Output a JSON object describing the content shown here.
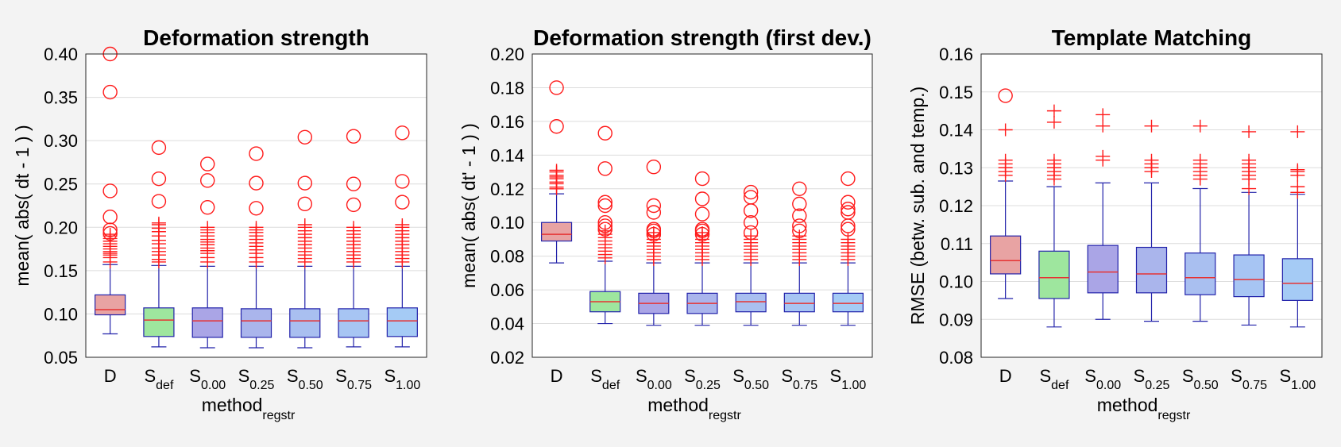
{
  "chart_data": [
    {
      "type": "boxplot",
      "title": "Deformation strength",
      "ylabel": "mean( abs( dt - 1 ) )",
      "xlabel": {
        "main": "method",
        "sub": "regstr"
      },
      "ylim": [
        0.05,
        0.4
      ],
      "yticks": [
        "0.05",
        "0.10",
        "0.15",
        "0.20",
        "0.25",
        "0.30",
        "0.35",
        "0.40"
      ],
      "categories": [
        {
          "main": "D",
          "sub": ""
        },
        {
          "main": "S",
          "sub": "def"
        },
        {
          "main": "S",
          "sub": "0.00"
        },
        {
          "main": "S",
          "sub": "0.25"
        },
        {
          "main": "S",
          "sub": "0.50"
        },
        {
          "main": "S",
          "sub": "0.75"
        },
        {
          "main": "S",
          "sub": "1.00"
        }
      ],
      "boxes": [
        {
          "whisker_low": 0.077,
          "q1": 0.099,
          "median": 0.105,
          "q3": 0.122,
          "whisker_high": 0.157,
          "outliers_plus": [
            0.16,
            0.165,
            0.168,
            0.17,
            0.172,
            0.175,
            0.178,
            0.181,
            0.184,
            0.187,
            0.19,
            0.192
          ],
          "outliers_circle": [
            0.193,
            0.197,
            0.212,
            0.242,
            0.356,
            0.4
          ]
        },
        {
          "whisker_low": 0.062,
          "q1": 0.074,
          "median": 0.093,
          "q3": 0.107,
          "whisker_high": 0.156,
          "outliers_plus": [
            0.16,
            0.163,
            0.168,
            0.172,
            0.176,
            0.181,
            0.185,
            0.19,
            0.195,
            0.199,
            0.203,
            0.205
          ],
          "outliers_circle": [
            0.23,
            0.256,
            0.292
          ]
        },
        {
          "whisker_low": 0.061,
          "q1": 0.073,
          "median": 0.092,
          "q3": 0.107,
          "whisker_high": 0.155,
          "outliers_plus": [
            0.16,
            0.165,
            0.17,
            0.173,
            0.176,
            0.18,
            0.183,
            0.186,
            0.19,
            0.194,
            0.197,
            0.2
          ],
          "outliers_circle": [
            0.223,
            0.254,
            0.273
          ]
        },
        {
          "whisker_low": 0.061,
          "q1": 0.073,
          "median": 0.092,
          "q3": 0.106,
          "whisker_high": 0.155,
          "outliers_plus": [
            0.16,
            0.165,
            0.17,
            0.174,
            0.178,
            0.182,
            0.186,
            0.19,
            0.194,
            0.197,
            0.2
          ],
          "outliers_circle": [
            0.222,
            0.251,
            0.285
          ]
        },
        {
          "whisker_low": 0.061,
          "q1": 0.073,
          "median": 0.092,
          "q3": 0.106,
          "whisker_high": 0.155,
          "outliers_plus": [
            0.16,
            0.164,
            0.168,
            0.172,
            0.176,
            0.18,
            0.184,
            0.188,
            0.192,
            0.196,
            0.2,
            0.203
          ],
          "outliers_circle": [
            0.227,
            0.251,
            0.304
          ]
        },
        {
          "whisker_low": 0.062,
          "q1": 0.073,
          "median": 0.092,
          "q3": 0.106,
          "whisker_high": 0.155,
          "outliers_plus": [
            0.16,
            0.164,
            0.168,
            0.172,
            0.176,
            0.18,
            0.184,
            0.188,
            0.192,
            0.196,
            0.2
          ],
          "outliers_circle": [
            0.226,
            0.25,
            0.305
          ]
        },
        {
          "whisker_low": 0.062,
          "q1": 0.074,
          "median": 0.092,
          "q3": 0.107,
          "whisker_high": 0.155,
          "outliers_plus": [
            0.16,
            0.164,
            0.168,
            0.172,
            0.176,
            0.18,
            0.184,
            0.188,
            0.192,
            0.196,
            0.2,
            0.203
          ],
          "outliers_circle": [
            0.229,
            0.253,
            0.309
          ]
        }
      ]
    },
    {
      "type": "boxplot",
      "title": "Deformation strength (first dev.)",
      "ylabel": "mean( abs( dt' - 1 ) )",
      "xlabel": {
        "main": "method",
        "sub": "regstr"
      },
      "ylim": [
        0.02,
        0.2
      ],
      "yticks": [
        "0.02",
        "0.04",
        "0.06",
        "0.08",
        "0.10",
        "0.12",
        "0.14",
        "0.16",
        "0.18",
        "0.20"
      ],
      "categories": [
        {
          "main": "D",
          "sub": ""
        },
        {
          "main": "S",
          "sub": "def"
        },
        {
          "main": "S",
          "sub": "0.00"
        },
        {
          "main": "S",
          "sub": "0.25"
        },
        {
          "main": "S",
          "sub": "0.50"
        },
        {
          "main": "S",
          "sub": "0.75"
        },
        {
          "main": "S",
          "sub": "1.00"
        }
      ],
      "boxes": [
        {
          "whisker_low": 0.076,
          "q1": 0.089,
          "median": 0.093,
          "q3": 0.1,
          "whisker_high": 0.117,
          "outliers_plus": [
            0.12,
            0.121,
            0.123,
            0.124,
            0.126,
            0.127,
            0.128,
            0.13,
            0.131
          ],
          "outliers_circle": [
            0.157,
            0.18
          ]
        },
        {
          "whisker_low": 0.04,
          "q1": 0.047,
          "median": 0.053,
          "q3": 0.059,
          "whisker_high": 0.077,
          "outliers_plus": [
            0.079,
            0.081,
            0.083,
            0.085,
            0.087,
            0.089,
            0.091,
            0.093,
            0.095
          ],
          "outliers_circle": [
            0.096,
            0.098,
            0.1,
            0.11,
            0.112,
            0.132,
            0.153
          ]
        },
        {
          "whisker_low": 0.039,
          "q1": 0.046,
          "median": 0.052,
          "q3": 0.058,
          "whisker_high": 0.076,
          "outliers_plus": [
            0.078,
            0.08,
            0.082,
            0.084,
            0.086,
            0.088,
            0.09,
            0.092,
            0.094
          ],
          "outliers_circle": [
            0.093,
            0.095,
            0.096,
            0.106,
            0.11,
            0.133
          ]
        },
        {
          "whisker_low": 0.039,
          "q1": 0.046,
          "median": 0.052,
          "q3": 0.058,
          "whisker_high": 0.076,
          "outliers_plus": [
            0.078,
            0.08,
            0.082,
            0.084,
            0.086,
            0.088,
            0.09,
            0.092,
            0.094
          ],
          "outliers_circle": [
            0.093,
            0.095,
            0.096,
            0.105,
            0.114,
            0.126
          ]
        },
        {
          "whisker_low": 0.039,
          "q1": 0.047,
          "median": 0.053,
          "q3": 0.058,
          "whisker_high": 0.076,
          "outliers_plus": [
            0.078,
            0.08,
            0.082,
            0.084,
            0.086,
            0.088,
            0.09,
            0.092
          ],
          "outliers_circle": [
            0.094,
            0.1,
            0.107,
            0.115,
            0.118
          ]
        },
        {
          "whisker_low": 0.039,
          "q1": 0.047,
          "median": 0.052,
          "q3": 0.058,
          "whisker_high": 0.076,
          "outliers_plus": [
            0.078,
            0.08,
            0.082,
            0.084,
            0.086,
            0.088,
            0.09,
            0.092
          ],
          "outliers_circle": [
            0.095,
            0.098,
            0.104,
            0.111,
            0.12
          ]
        },
        {
          "whisker_low": 0.039,
          "q1": 0.047,
          "median": 0.052,
          "q3": 0.058,
          "whisker_high": 0.076,
          "outliers_plus": [
            0.078,
            0.08,
            0.082,
            0.084,
            0.086,
            0.088,
            0.09
          ],
          "outliers_circle": [
            0.096,
            0.098,
            0.106,
            0.108,
            0.112,
            0.126
          ]
        }
      ]
    },
    {
      "type": "boxplot",
      "title": "Template Matching",
      "ylabel": "RMSE (betw. sub. and temp.)",
      "xlabel": {
        "main": "method",
        "sub": "regstr"
      },
      "ylim": [
        0.08,
        0.16
      ],
      "yticks": [
        "0.08",
        "0.09",
        "0.10",
        "0.11",
        "0.12",
        "0.13",
        "0.14",
        "0.15",
        "0.16"
      ],
      "categories": [
        {
          "main": "D",
          "sub": ""
        },
        {
          "main": "S",
          "sub": "def"
        },
        {
          "main": "S",
          "sub": "0.00"
        },
        {
          "main": "S",
          "sub": "0.25"
        },
        {
          "main": "S",
          "sub": "0.50"
        },
        {
          "main": "S",
          "sub": "0.75"
        },
        {
          "main": "S",
          "sub": "1.00"
        }
      ],
      "boxes": [
        {
          "whisker_low": 0.0955,
          "q1": 0.102,
          "median": 0.1055,
          "q3": 0.112,
          "whisker_high": 0.1265,
          "outliers_plus": [
            0.128,
            0.129,
            0.13,
            0.131,
            0.132,
            0.14
          ],
          "outliers_circle": [
            0.149
          ]
        },
        {
          "whisker_low": 0.088,
          "q1": 0.0955,
          "median": 0.101,
          "q3": 0.108,
          "whisker_high": 0.125,
          "outliers_plus": [
            0.127,
            0.128,
            0.129,
            0.13,
            0.131,
            0.132,
            0.142,
            0.145
          ],
          "outliers_circle": []
        },
        {
          "whisker_low": 0.09,
          "q1": 0.097,
          "median": 0.1025,
          "q3": 0.1095,
          "whisker_high": 0.126,
          "outliers_plus": [
            0.132,
            0.133,
            0.141,
            0.144
          ],
          "outliers_circle": []
        },
        {
          "whisker_low": 0.0895,
          "q1": 0.097,
          "median": 0.102,
          "q3": 0.109,
          "whisker_high": 0.126,
          "outliers_plus": [
            0.129,
            0.13,
            0.131,
            0.132,
            0.141
          ],
          "outliers_circle": []
        },
        {
          "whisker_low": 0.0895,
          "q1": 0.0965,
          "median": 0.101,
          "q3": 0.1075,
          "whisker_high": 0.1245,
          "outliers_plus": [
            0.127,
            0.128,
            0.129,
            0.13,
            0.131,
            0.132,
            0.141
          ],
          "outliers_circle": []
        },
        {
          "whisker_low": 0.0885,
          "q1": 0.096,
          "median": 0.1005,
          "q3": 0.107,
          "whisker_high": 0.1235,
          "outliers_plus": [
            0.1245,
            0.127,
            0.128,
            0.129,
            0.13,
            0.131,
            0.132,
            0.1395
          ],
          "outliers_circle": []
        },
        {
          "whisker_low": 0.088,
          "q1": 0.095,
          "median": 0.0995,
          "q3": 0.106,
          "whisker_high": 0.123,
          "outliers_plus": [
            0.1235,
            0.125,
            0.128,
            0.129,
            0.1295,
            0.1395
          ],
          "outliers_circle": []
        }
      ]
    }
  ],
  "colors": {
    "box_fills": [
      "#e8a3a3",
      "#9ee69e",
      "#aaa5e6",
      "#aab5ec",
      "#a9bff0",
      "#a7c5f3",
      "#a5cbf5"
    ],
    "box_edge": "#2222aa",
    "median": "#e63333",
    "whisker": "#2222aa",
    "outlier": "#ff1a1a",
    "grid": "#dcdcdc",
    "axes_bg": "#ffffff",
    "figure_bg": "#f3f3f3"
  }
}
